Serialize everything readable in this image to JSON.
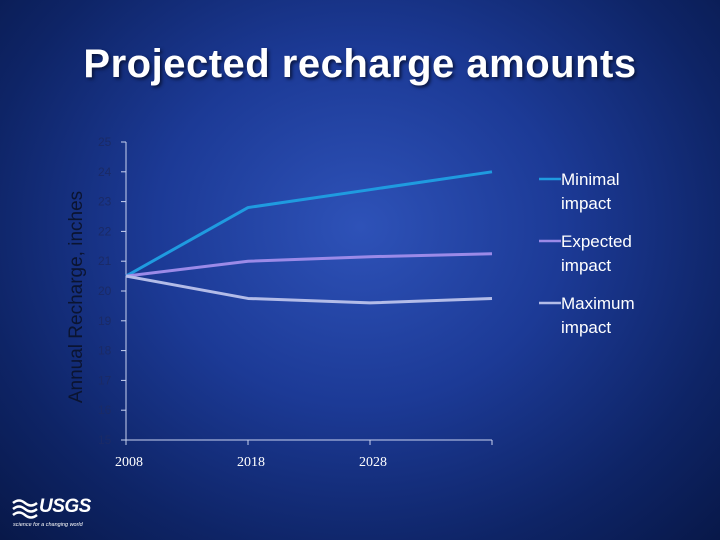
{
  "slide": {
    "title": "Projected recharge amounts",
    "logo_text": "USGS",
    "logo_tagline": "science for a changing world"
  },
  "chart_data": {
    "type": "line",
    "title": "",
    "xlabel": "",
    "ylabel": "Annual Recharge, inches",
    "x": [
      2008,
      2018,
      2028,
      2038
    ],
    "x_tick_labels": [
      "2008",
      "2018",
      "2028"
    ],
    "ylim": [
      15,
      25
    ],
    "y_ticks": [
      15,
      16,
      17,
      18,
      19,
      20,
      21,
      22,
      23,
      24,
      25
    ],
    "grid": false,
    "legend_position": "right",
    "series": [
      {
        "name": "Minimal impact",
        "legend_lines": [
          "Minimal",
          "impact"
        ],
        "color": "#1f9be0",
        "values": [
          20.5,
          22.8,
          23.4,
          24.0
        ]
      },
      {
        "name": "Expected impact",
        "legend_lines": [
          "Expected",
          "impact"
        ],
        "color": "#9b8ae8",
        "values": [
          20.5,
          21.0,
          21.15,
          21.25
        ]
      },
      {
        "name": "Maximum impact",
        "legend_lines": [
          "Maximum",
          "impact"
        ],
        "color": "#b3bce8",
        "values": [
          20.5,
          19.75,
          19.6,
          19.75
        ]
      }
    ]
  }
}
